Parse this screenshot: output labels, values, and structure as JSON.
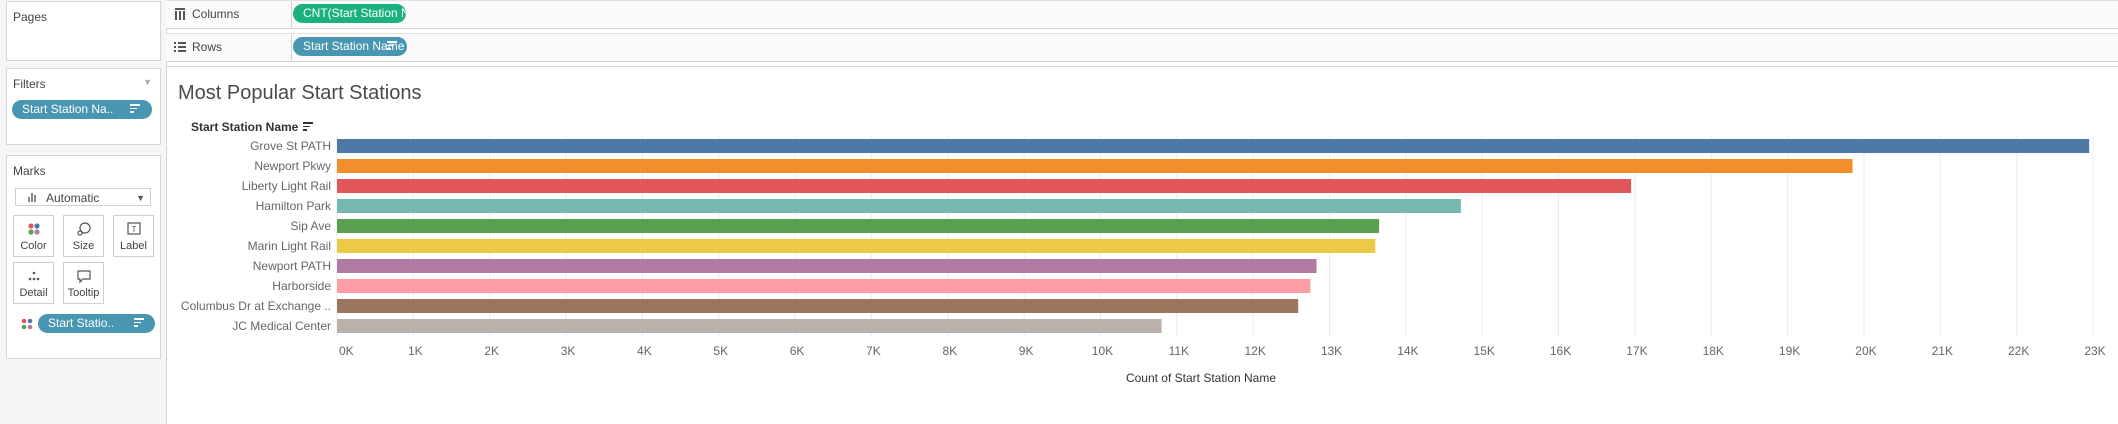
{
  "shelves": {
    "columns_label": "Columns",
    "columns_pill": "CNT(Start Station Na..",
    "rows_label": "Rows",
    "rows_pill": "Start Station Name"
  },
  "left_panel": {
    "pages_title": "Pages",
    "filters_title": "Filters",
    "filter_pill": "Start Station Na..",
    "marks_title": "Marks",
    "mark_type": "Automatic",
    "buttons": {
      "color": "Color",
      "size": "Size",
      "label": "Label",
      "detail": "Detail",
      "tooltip": "Tooltip"
    },
    "color_pill": "Start Statio.."
  },
  "viz": {
    "title": "Most Popular Start Stations",
    "row_header": "Start Station Name"
  },
  "chart_data": {
    "type": "bar",
    "orientation": "horizontal",
    "categories": [
      "Grove St PATH",
      "Newport Pkwy",
      "Liberty Light Rail",
      "Hamilton Park",
      "Sip Ave",
      "Marin Light Rail",
      "Newport PATH",
      "Harborside",
      "Columbus Dr at Exchange ..",
      "JC Medical Center"
    ],
    "values": [
      22950,
      19850,
      16950,
      14720,
      13650,
      13600,
      12830,
      12750,
      12590,
      10800
    ],
    "colors": [
      "#4e79a7",
      "#f28e2b",
      "#e15759",
      "#76b7b2",
      "#59a14f",
      "#edc948",
      "#b07aa1",
      "#ff9da7",
      "#9c755f",
      "#bab0ac"
    ],
    "xlabel": "Count of Start Station Name",
    "xlim": [
      0,
      23000
    ],
    "x_ticks": [
      "0K",
      "1K",
      "2K",
      "3K",
      "4K",
      "5K",
      "6K",
      "7K",
      "8K",
      "9K",
      "10K",
      "11K",
      "12K",
      "13K",
      "14K",
      "15K",
      "16K",
      "17K",
      "18K",
      "19K",
      "20K",
      "21K",
      "22K",
      "23K"
    ],
    "grid": "vertical"
  }
}
